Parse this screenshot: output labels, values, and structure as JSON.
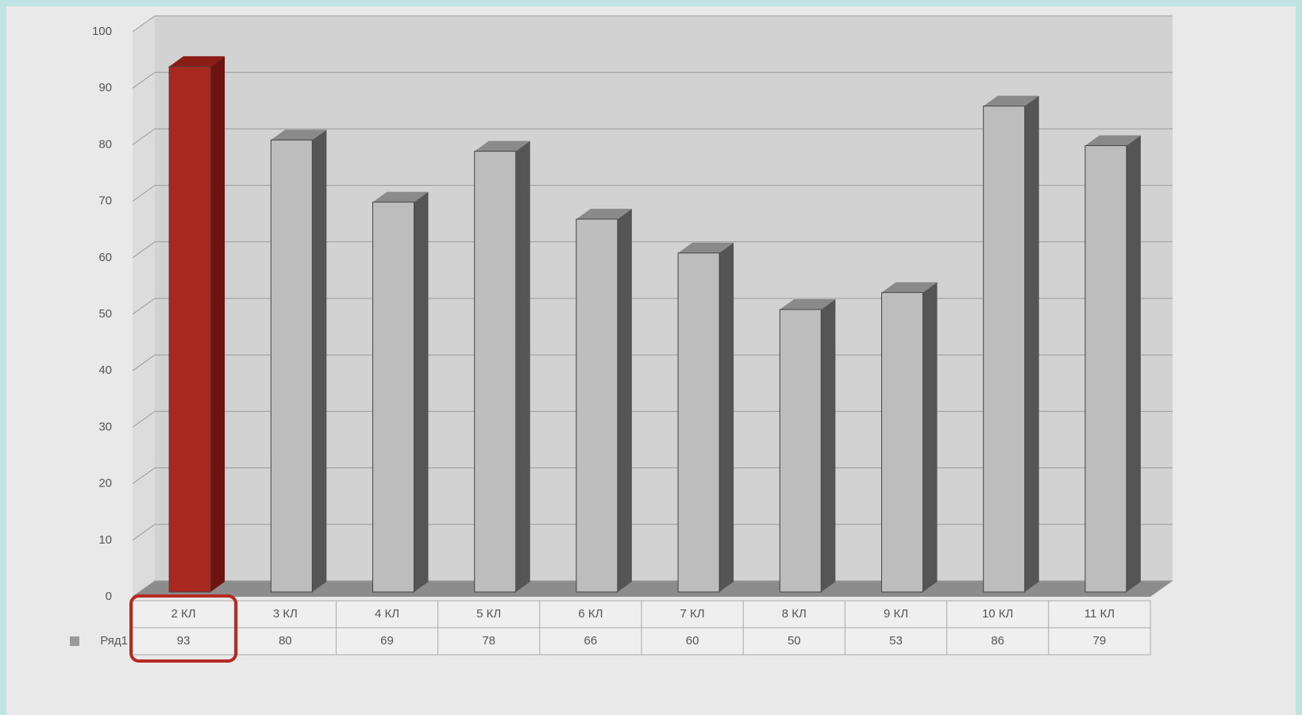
{
  "chart_data": {
    "type": "bar3d",
    "categories": [
      "2 КЛ",
      "3 КЛ",
      "4 КЛ",
      "5 КЛ",
      "6 КЛ",
      "7 КЛ",
      "8 КЛ",
      "9 КЛ",
      "10 КЛ",
      "11 КЛ"
    ],
    "series": [
      {
        "name": "Ряд1",
        "values": [
          93,
          80,
          69,
          78,
          66,
          60,
          50,
          53,
          86,
          79
        ],
        "colors": [
          "#a8271f",
          "#bdbdbd",
          "#bdbdbd",
          "#bdbdbd",
          "#bdbdbd",
          "#bdbdbd",
          "#bdbdbd",
          "#bdbdbd",
          "#bdbdbd",
          "#bdbdbd"
        ]
      }
    ],
    "ylim": [
      0,
      100
    ],
    "yticks": [
      0,
      10,
      20,
      30,
      40,
      50,
      60,
      70,
      80,
      90,
      100
    ],
    "grid": true,
    "data_table": true
  }
}
